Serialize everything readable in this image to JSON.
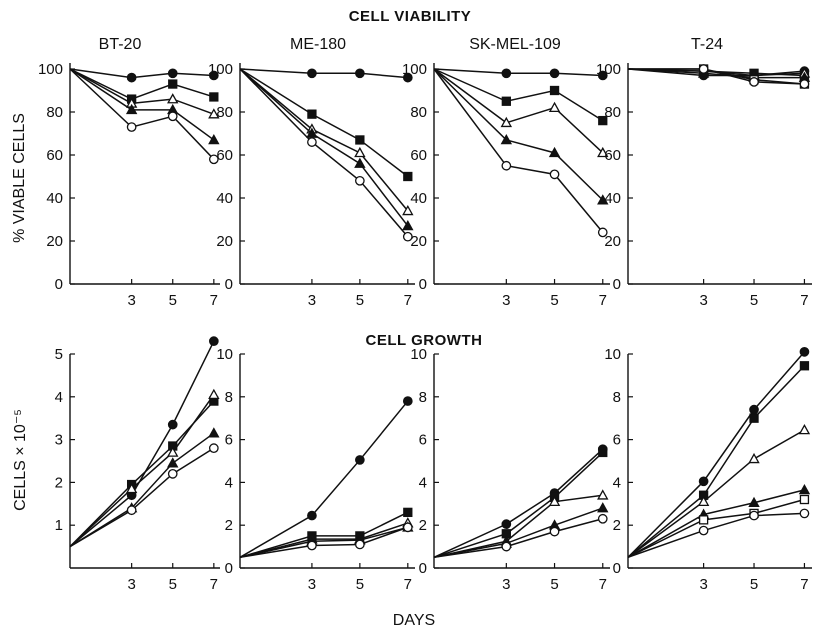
{
  "headings": {
    "viability": "CELL VIABILITY",
    "growth": "CELL GROWTH"
  },
  "axis_labels": {
    "viability_y": "% VIABLE CELLS",
    "growth_y": "CELLS × 10⁻⁵",
    "x": "DAYS"
  },
  "panels": [
    "BT-20",
    "ME-180",
    "SK-MEL-109",
    "T-24"
  ],
  "series_markers": [
    "filled-circle",
    "filled-square",
    "open-triangle",
    "filled-triangle",
    "open-square",
    "open-circle"
  ],
  "chart_data": [
    {
      "type": "line",
      "section": "CELL VIABILITY",
      "title": "BT-20",
      "x": [
        0,
        3,
        5,
        7
      ],
      "xticks": [
        3,
        5,
        7
      ],
      "xlim": [
        0,
        7.3
      ],
      "ylim": [
        0,
        100
      ],
      "yticks": [
        0,
        20,
        40,
        60,
        80,
        100
      ],
      "series": [
        {
          "marker": "filled-circle",
          "values": [
            100,
            96,
            98,
            97
          ]
        },
        {
          "marker": "filled-square",
          "values": [
            100,
            86,
            93,
            87
          ]
        },
        {
          "marker": "open-triangle",
          "values": [
            100,
            84,
            86,
            79
          ]
        },
        {
          "marker": "filled-triangle",
          "values": [
            100,
            81,
            81,
            67
          ]
        },
        {
          "marker": "open-circle",
          "values": [
            100,
            73,
            78,
            58
          ]
        }
      ]
    },
    {
      "type": "line",
      "section": "CELL VIABILITY",
      "title": "ME-180",
      "x": [
        0,
        3,
        5,
        7
      ],
      "xticks": [
        3,
        5,
        7
      ],
      "xlim": [
        0,
        7.3
      ],
      "ylim": [
        0,
        100
      ],
      "yticks": [
        0,
        20,
        40,
        60,
        80,
        100
      ],
      "series": [
        {
          "marker": "filled-circle",
          "values": [
            100,
            98,
            98,
            96
          ]
        },
        {
          "marker": "filled-square",
          "values": [
            100,
            79,
            67,
            50
          ]
        },
        {
          "marker": "open-triangle",
          "values": [
            100,
            72,
            61,
            34
          ]
        },
        {
          "marker": "filled-triangle",
          "values": [
            100,
            70,
            56,
            27
          ]
        },
        {
          "marker": "open-circle",
          "values": [
            100,
            66,
            48,
            22
          ]
        }
      ]
    },
    {
      "type": "line",
      "section": "CELL VIABILITY",
      "title": "SK-MEL-109",
      "x": [
        0,
        3,
        5,
        7
      ],
      "xticks": [
        3,
        5,
        7
      ],
      "xlim": [
        0,
        7.3
      ],
      "ylim": [
        0,
        100
      ],
      "yticks": [
        0,
        20,
        40,
        60,
        80,
        100
      ],
      "series": [
        {
          "marker": "filled-circle",
          "values": [
            100,
            98,
            98,
            97
          ]
        },
        {
          "marker": "filled-square",
          "values": [
            100,
            85,
            90,
            76
          ]
        },
        {
          "marker": "open-triangle",
          "values": [
            100,
            75,
            82,
            61
          ]
        },
        {
          "marker": "filled-triangle",
          "values": [
            100,
            67,
            61,
            39
          ]
        },
        {
          "marker": "open-circle",
          "values": [
            100,
            55,
            51,
            24
          ]
        }
      ]
    },
    {
      "type": "line",
      "section": "CELL VIABILITY",
      "title": "T-24",
      "x": [
        0,
        3,
        5,
        7
      ],
      "xticks": [
        3,
        5,
        7
      ],
      "xlim": [
        0,
        7.3
      ],
      "ylim": [
        0,
        100
      ],
      "yticks": [
        0,
        20,
        40,
        60,
        80,
        100
      ],
      "series": [
        {
          "marker": "filled-circle",
          "values": [
            100,
            97,
            97,
            99
          ]
        },
        {
          "marker": "filled-square",
          "values": [
            100,
            99,
            98,
            97
          ]
        },
        {
          "marker": "open-triangle",
          "values": [
            100,
            99,
            97,
            98
          ]
        },
        {
          "marker": "filled-triangle",
          "values": [
            100,
            98,
            96,
            96
          ]
        },
        {
          "marker": "open-square",
          "values": [
            100,
            100,
            95,
            93
          ]
        },
        {
          "marker": "open-circle",
          "values": [
            100,
            100,
            94,
            93
          ]
        }
      ]
    },
    {
      "type": "line",
      "section": "CELL GROWTH",
      "title": "BT-20",
      "x": [
        0,
        3,
        5,
        7
      ],
      "xticks": [
        3,
        5,
        7
      ],
      "xlim": [
        0,
        7.3
      ],
      "ylim": [
        0,
        5.2
      ],
      "yticks": [
        1,
        2,
        3,
        4,
        5
      ],
      "series": [
        {
          "marker": "filled-circle",
          "values": [
            0.5,
            1.7,
            3.35,
            5.3
          ]
        },
        {
          "marker": "filled-square",
          "values": [
            0.5,
            1.95,
            2.85,
            3.9
          ]
        },
        {
          "marker": "open-triangle",
          "values": [
            0.5,
            1.85,
            2.7,
            4.05
          ]
        },
        {
          "marker": "filled-triangle",
          "values": [
            0.5,
            1.4,
            2.45,
            3.15
          ]
        },
        {
          "marker": "open-circle",
          "values": [
            0.5,
            1.35,
            2.2,
            2.8
          ]
        }
      ]
    },
    {
      "type": "line",
      "section": "CELL GROWTH",
      "title": "ME-180",
      "x": [
        0,
        3,
        5,
        7
      ],
      "xticks": [
        3,
        5,
        7
      ],
      "xlim": [
        0,
        7.3
      ],
      "ylim": [
        0,
        10
      ],
      "yticks": [
        0,
        2,
        4,
        6,
        8,
        10
      ],
      "series": [
        {
          "marker": "filled-circle",
          "values": [
            0.5,
            2.45,
            5.05,
            7.8
          ]
        },
        {
          "marker": "filled-square",
          "values": [
            0.5,
            1.5,
            1.5,
            2.6
          ]
        },
        {
          "marker": "open-triangle",
          "values": [
            0.5,
            1.35,
            1.35,
            2.1
          ]
        },
        {
          "marker": "filled-triangle",
          "values": [
            0.5,
            1.25,
            1.3,
            1.9
          ]
        },
        {
          "marker": "open-circle",
          "values": [
            0.5,
            1.05,
            1.1,
            1.9
          ]
        }
      ]
    },
    {
      "type": "line",
      "section": "CELL GROWTH",
      "title": "SK-MEL-109",
      "x": [
        0,
        3,
        5,
        7
      ],
      "xticks": [
        3,
        5,
        7
      ],
      "xlim": [
        0,
        7.3
      ],
      "ylim": [
        0,
        10
      ],
      "yticks": [
        0,
        2,
        4,
        6,
        8,
        10
      ],
      "series": [
        {
          "marker": "filled-circle",
          "values": [
            0.5,
            2.05,
            3.5,
            5.55
          ]
        },
        {
          "marker": "filled-square",
          "values": [
            0.5,
            1.6,
            3.3,
            5.4
          ]
        },
        {
          "marker": "open-triangle",
          "values": [
            0.5,
            1.25,
            3.1,
            3.4
          ]
        },
        {
          "marker": "filled-triangle",
          "values": [
            0.5,
            1.15,
            2.0,
            2.8
          ]
        },
        {
          "marker": "open-circle",
          "values": [
            0.5,
            1.0,
            1.7,
            2.3
          ]
        }
      ]
    },
    {
      "type": "line",
      "section": "CELL GROWTH",
      "title": "T-24",
      "x": [
        0,
        3,
        5,
        7
      ],
      "xticks": [
        3,
        5,
        7
      ],
      "xlim": [
        0,
        7.3
      ],
      "ylim": [
        0,
        10
      ],
      "yticks": [
        0,
        2,
        4,
        6,
        8,
        10
      ],
      "series": [
        {
          "marker": "filled-circle",
          "values": [
            0.5,
            4.05,
            7.4,
            10.1
          ]
        },
        {
          "marker": "filled-square",
          "values": [
            0.5,
            3.4,
            7.0,
            9.45
          ]
        },
        {
          "marker": "open-triangle",
          "values": [
            0.5,
            3.1,
            5.1,
            6.45
          ]
        },
        {
          "marker": "filled-triangle",
          "values": [
            0.5,
            2.5,
            3.05,
            3.65
          ]
        },
        {
          "marker": "open-square",
          "values": [
            0.5,
            2.25,
            2.55,
            3.2
          ]
        },
        {
          "marker": "open-circle",
          "values": [
            0.5,
            1.75,
            2.45,
            2.55
          ]
        }
      ]
    }
  ]
}
